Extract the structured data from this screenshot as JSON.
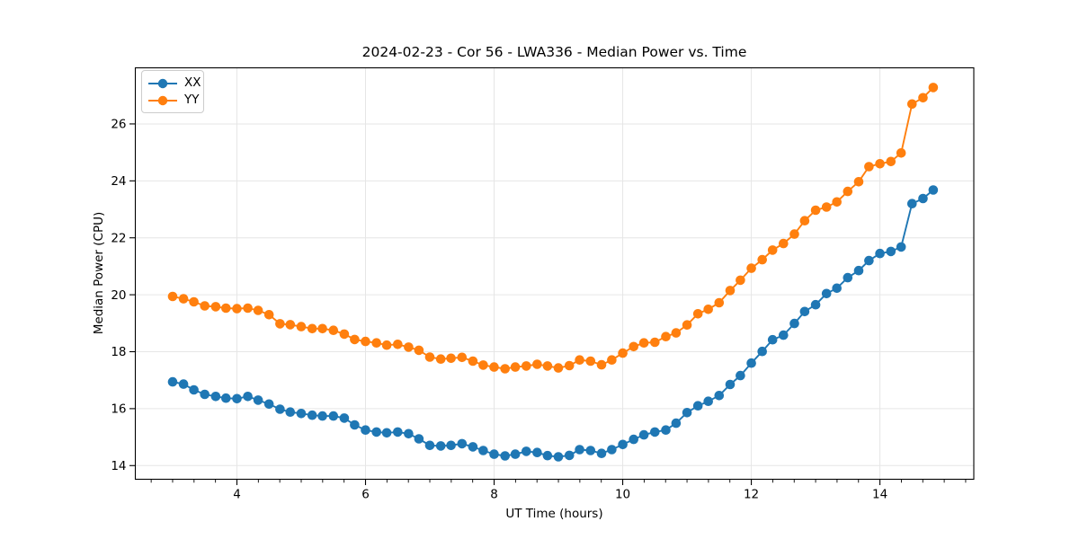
{
  "chart_data": {
    "type": "line",
    "title": "2024-02-23 - Cor 56 - LWA336 - Median Power vs. Time",
    "xlabel": "UT Time (hours)",
    "ylabel": "Median Power (CPU)",
    "xlim": [
      2.42,
      15.46
    ],
    "ylim": [
      13.52,
      27.97
    ],
    "xticks": [
      4,
      6,
      8,
      10,
      12,
      14
    ],
    "yticks": [
      14,
      16,
      18,
      20,
      22,
      24,
      26
    ],
    "x_minor_step": 0.3333,
    "grid": true,
    "legend_position": "upper-left",
    "marker": "circle",
    "x": [
      3.0,
      3.17,
      3.33,
      3.5,
      3.67,
      3.83,
      4.0,
      4.17,
      4.33,
      4.5,
      4.67,
      4.83,
      5.0,
      5.17,
      5.33,
      5.5,
      5.67,
      5.83,
      6.0,
      6.17,
      6.33,
      6.5,
      6.67,
      6.83,
      7.0,
      7.17,
      7.33,
      7.5,
      7.67,
      7.83,
      8.0,
      8.17,
      8.33,
      8.5,
      8.67,
      8.83,
      9.0,
      9.17,
      9.33,
      9.5,
      9.67,
      9.83,
      10.0,
      10.17,
      10.33,
      10.5,
      10.67,
      10.83,
      11.0,
      11.17,
      11.33,
      11.5,
      11.67,
      11.83,
      12.0,
      12.17,
      12.33,
      12.5,
      12.67,
      12.83,
      13.0,
      13.17,
      13.33,
      13.5,
      13.67,
      13.83,
      14.0,
      14.17,
      14.33,
      14.5,
      14.67,
      14.83
    ],
    "series": [
      {
        "name": "XX",
        "color": "#1f77b4",
        "values": [
          16.94,
          16.86,
          16.66,
          16.5,
          16.43,
          16.37,
          16.35,
          16.43,
          16.3,
          16.16,
          15.98,
          15.88,
          15.83,
          15.77,
          15.74,
          15.74,
          15.67,
          15.43,
          15.25,
          15.18,
          15.15,
          15.18,
          15.12,
          14.94,
          14.71,
          14.69,
          14.71,
          14.77,
          14.66,
          14.53,
          14.4,
          14.34,
          14.4,
          14.5,
          14.46,
          14.35,
          14.31,
          14.36,
          14.56,
          14.53,
          14.43,
          14.56,
          14.74,
          14.92,
          15.08,
          15.18,
          15.25,
          15.49,
          15.86,
          16.1,
          16.26,
          16.46,
          16.85,
          17.16,
          17.6,
          18.01,
          18.42,
          18.58,
          18.99,
          19.41,
          19.65,
          20.04,
          20.23,
          20.6,
          20.85,
          21.2,
          21.45,
          21.52,
          21.68,
          23.2,
          23.38,
          23.68
        ]
      },
      {
        "name": "YY",
        "color": "#ff7f0e",
        "values": [
          19.94,
          19.86,
          19.75,
          19.61,
          19.58,
          19.53,
          19.51,
          19.53,
          19.45,
          19.3,
          18.98,
          18.95,
          18.88,
          18.81,
          18.81,
          18.75,
          18.62,
          18.43,
          18.36,
          18.31,
          18.23,
          18.26,
          18.16,
          18.05,
          17.81,
          17.74,
          17.77,
          17.8,
          17.67,
          17.53,
          17.46,
          17.4,
          17.46,
          17.5,
          17.56,
          17.5,
          17.43,
          17.51,
          17.71,
          17.67,
          17.54,
          17.71,
          17.95,
          18.18,
          18.31,
          18.33,
          18.53,
          18.66,
          18.94,
          19.33,
          19.49,
          19.72,
          20.15,
          20.51,
          20.93,
          21.23,
          21.57,
          21.8,
          22.13,
          22.6,
          22.97,
          23.08,
          23.26,
          23.63,
          23.97,
          24.5,
          24.6,
          24.68,
          24.98,
          26.7,
          26.92,
          27.28
        ]
      }
    ]
  }
}
